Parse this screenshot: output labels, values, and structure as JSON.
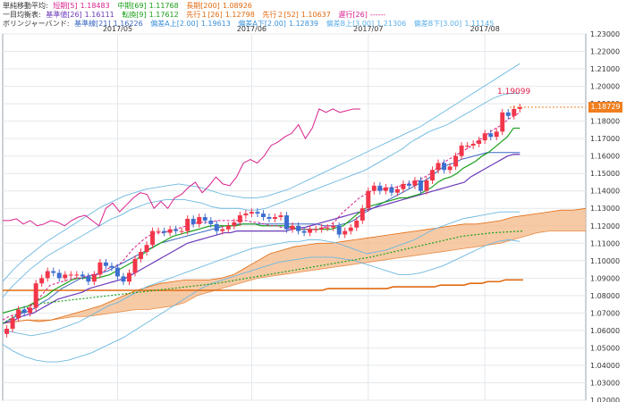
{
  "legends": {
    "sma": {
      "title": "単純移動平均:",
      "items": [
        {
          "label": "短期[5]",
          "value": "1.18483",
          "color": "#d8208c"
        },
        {
          "label": "中期[69]",
          "value": "1.11768",
          "color": "#1aa01a"
        },
        {
          "label": "長期[200]",
          "value": "1.08926",
          "color": "#e06a10"
        }
      ]
    },
    "ichimoku": {
      "title": "一目均衡表:",
      "items": [
        {
          "label": "基準値[26]",
          "value": "1.16111",
          "color": "#6c3ab8"
        },
        {
          "label": "転換[9]",
          "value": "1.17612",
          "color": "#1aa01a"
        },
        {
          "label": "先行１[26]",
          "value": "1.12798",
          "color": "#e06a10"
        },
        {
          "label": "先行２[52]",
          "value": "1.10637",
          "color": "#e06a10"
        },
        {
          "label": "遅行[26]",
          "value": "------",
          "color": "#d8208c"
        }
      ]
    },
    "bollinger": {
      "title": "ボリンジャーバンド:",
      "items": [
        {
          "label": "基準線[21]",
          "value": "1.16226",
          "color": "#3a66c0"
        },
        {
          "label": "偏差A上[2.00]",
          "value": "1.19613",
          "color": "#3a90d8"
        },
        {
          "label": "偏差A下[2.00]",
          "value": "1.12839",
          "color": "#3a90d8"
        },
        {
          "label": "偏差B上[3.00]",
          "value": "1.21306",
          "color": "#5ab0e8"
        },
        {
          "label": "偏差B下[3.00]",
          "value": "1.11145",
          "color": "#5ab0e8"
        }
      ]
    }
  },
  "price_tag": "1.18729",
  "peak_label": "1.19099",
  "colors": {
    "up": "#f2364a",
    "down": "#3d6fd0",
    "cloud": "#f4b888",
    "sma_short": "#d8208c",
    "sma_mid": "#1aa01a",
    "sma_long": "#e06a10",
    "kijun": "#6c3ab8",
    "chikou": "#d8208c",
    "bb_mid": "#3a66c0",
    "bb_band": "#6cb8e0",
    "price_tag": "#f07f20"
  },
  "chart_data": {
    "type": "candlestick",
    "xlabels": [
      "2017/05",
      "2017/06",
      "2017/07",
      "2017/08"
    ],
    "ylim": [
      1.02,
      1.23
    ],
    "yticks": [
      "1.23000",
      "1.22000",
      "1.21000",
      "1.20000",
      "1.19000",
      "1.18000",
      "1.17000",
      "1.16000",
      "1.15000",
      "1.14000",
      "1.13000",
      "1.12000",
      "1.11000",
      "1.10000",
      "1.09000",
      "1.08000",
      "1.07000",
      "1.06000",
      "1.05000",
      "1.04000",
      "1.03000",
      "1.02000"
    ],
    "grid": true,
    "month_index": [
      19,
      42,
      62,
      82
    ],
    "close": [
      1.061,
      1.067,
      1.072,
      1.07,
      1.073,
      1.087,
      1.09,
      1.094,
      1.093,
      1.09,
      1.092,
      1.092,
      1.092,
      1.091,
      1.088,
      1.092,
      1.099,
      1.097,
      1.096,
      1.091,
      1.088,
      1.093,
      1.101,
      1.105,
      1.109,
      1.117,
      1.117,
      1.116,
      1.118,
      1.117,
      1.117,
      1.124,
      1.121,
      1.125,
      1.123,
      1.121,
      1.117,
      1.118,
      1.12,
      1.122,
      1.126,
      1.127,
      1.128,
      1.127,
      1.125,
      1.124,
      1.125,
      1.126,
      1.118,
      1.12,
      1.117,
      1.116,
      1.118,
      1.118,
      1.119,
      1.119,
      1.12,
      1.115,
      1.117,
      1.119,
      1.123,
      1.13,
      1.14,
      1.143,
      1.14,
      1.142,
      1.139,
      1.141,
      1.144,
      1.143,
      1.146,
      1.14,
      1.146,
      1.152,
      1.156,
      1.152,
      1.154,
      1.16,
      1.166,
      1.166,
      1.167,
      1.169,
      1.173,
      1.171,
      1.174,
      1.185,
      1.183,
      1.187,
      1.188
    ],
    "sma_short": [
      1.066,
      1.068,
      1.069,
      1.07,
      1.072,
      1.075,
      1.078,
      1.082,
      1.086,
      1.087,
      1.088,
      1.089,
      1.09,
      1.09,
      1.091,
      1.092,
      1.092,
      1.094,
      1.096,
      1.097,
      1.099,
      1.103,
      1.107,
      1.11,
      1.113,
      1.115,
      1.116,
      1.116,
      1.117,
      1.118,
      1.119,
      1.12,
      1.121,
      1.122,
      1.122,
      1.122,
      1.123,
      1.123,
      1.123,
      1.123,
      1.123,
      1.123,
      1.122,
      1.122,
      1.121,
      1.12,
      1.12,
      1.119,
      1.119,
      1.118,
      1.118,
      1.118,
      1.118,
      1.118,
      1.119,
      1.12,
      1.123,
      1.127,
      1.13,
      1.133,
      1.136,
      1.138,
      1.14,
      1.141,
      1.141,
      1.142,
      1.142,
      1.143,
      1.144,
      1.145,
      1.146,
      1.148,
      1.15,
      1.153,
      1.156,
      1.158,
      1.16,
      1.162,
      1.164,
      1.166,
      1.169,
      1.171,
      1.174,
      1.176,
      1.178,
      1.181,
      1.183,
      1.185
    ],
    "sma_mid": [
      1.07,
      1.071,
      1.072,
      1.073,
      1.074,
      1.076,
      1.078,
      1.08,
      1.083,
      1.085,
      1.087,
      1.089,
      1.09,
      1.09,
      1.09,
      1.09,
      1.091,
      1.092,
      1.094,
      1.096,
      1.098,
      1.1,
      1.103,
      1.106,
      1.108,
      1.11,
      1.112,
      1.114,
      1.115,
      1.116,
      1.117,
      1.118,
      1.119,
      1.12,
      1.12,
      1.12,
      1.12,
      1.12,
      1.121,
      1.121,
      1.121,
      1.12,
      1.12,
      1.12,
      1.12,
      1.12,
      1.119,
      1.118,
      1.118,
      1.118,
      1.118,
      1.118,
      1.118,
      1.119,
      1.12,
      1.123,
      1.126,
      1.129,
      1.131,
      1.132,
      1.133,
      1.134,
      1.135,
      1.136,
      1.136,
      1.137,
      1.138,
      1.14,
      1.142,
      1.145,
      1.147,
      1.148,
      1.15,
      1.153,
      1.155,
      1.157,
      1.16,
      1.162,
      1.165,
      1.168,
      1.171,
      1.176,
      1.176
    ],
    "sma_long": [
      1.083,
      1.083,
      1.083,
      1.083,
      1.083,
      1.083,
      1.083,
      1.083,
      1.083,
      1.083,
      1.083,
      1.083,
      1.083,
      1.083,
      1.083,
      1.083,
      1.083,
      1.083,
      1.083,
      1.083,
      1.083,
      1.083,
      1.083,
      1.083,
      1.083,
      1.083,
      1.083,
      1.083,
      1.083,
      1.083,
      1.083,
      1.083,
      1.083,
      1.083,
      1.083,
      1.083,
      1.083,
      1.083,
      1.083,
      1.083,
      1.083,
      1.083,
      1.083,
      1.083,
      1.083,
      1.083,
      1.083,
      1.083,
      1.083,
      1.083,
      1.083,
      1.083,
      1.083,
      1.083,
      1.083,
      1.084,
      1.084,
      1.084,
      1.084,
      1.084,
      1.084,
      1.084,
      1.084,
      1.084,
      1.084,
      1.084,
      1.085,
      1.085,
      1.085,
      1.085,
      1.085,
      1.085,
      1.085,
      1.085,
      1.086,
      1.086,
      1.086,
      1.086,
      1.086,
      1.087,
      1.087,
      1.087,
      1.088,
      1.088,
      1.088,
      1.089,
      1.089,
      1.089,
      1.089
    ],
    "kijun": [
      1.064,
      1.065,
      1.066,
      1.068,
      1.069,
      1.07,
      1.072,
      1.074,
      1.076,
      1.078,
      1.079,
      1.08,
      1.081,
      1.082,
      1.084,
      1.085,
      1.086,
      1.087,
      1.088,
      1.089,
      1.09,
      1.092,
      1.094,
      1.096,
      1.098,
      1.1,
      1.102,
      1.104,
      1.106,
      1.108,
      1.11,
      1.111,
      1.112,
      1.113,
      1.114,
      1.115,
      1.116,
      1.116,
      1.117,
      1.117,
      1.117,
      1.117,
      1.117,
      1.117,
      1.117,
      1.117,
      1.117,
      1.118,
      1.119,
      1.119,
      1.12,
      1.121,
      1.122,
      1.123,
      1.124,
      1.125,
      1.126,
      1.127,
      1.128,
      1.129,
      1.13,
      1.131,
      1.132,
      1.133,
      1.134,
      1.135,
      1.136,
      1.137,
      1.138,
      1.139,
      1.14,
      1.141,
      1.142,
      1.143,
      1.144,
      1.145,
      1.148,
      1.15,
      1.152,
      1.154,
      1.156,
      1.158,
      1.16,
      1.161,
      1.161
    ],
    "chikou": [
      1.123,
      1.123,
      1.124,
      1.121,
      1.123,
      1.12,
      1.121,
      1.123,
      1.122,
      1.12,
      1.123,
      1.125,
      1.126,
      1.123,
      1.12,
      1.13,
      1.133,
      1.128,
      1.132,
      1.136,
      1.139,
      1.138,
      1.13,
      1.134,
      1.13,
      1.136,
      1.138,
      1.142,
      1.145,
      1.139,
      1.143,
      1.148,
      1.144,
      1.143,
      1.148,
      1.156,
      1.158,
      1.156,
      1.16,
      1.166,
      1.168,
      1.171,
      1.173,
      1.178,
      1.17,
      1.176,
      1.187,
      1.185,
      1.187,
      1.185,
      1.186,
      1.187,
      1.187
    ],
    "bb_mid": [
      1.064,
      1.066,
      1.068,
      1.07,
      1.071,
      1.073,
      1.076,
      1.078,
      1.081,
      1.084,
      1.086,
      1.088,
      1.09,
      1.091,
      1.092,
      1.093,
      1.094,
      1.096,
      1.098,
      1.1,
      1.102,
      1.104,
      1.106,
      1.108,
      1.11,
      1.111,
      1.112,
      1.113,
      1.114,
      1.115,
      1.116,
      1.117,
      1.118,
      1.119,
      1.12,
      1.12,
      1.121,
      1.121,
      1.121,
      1.121,
      1.121,
      1.121,
      1.121,
      1.121,
      1.121,
      1.121,
      1.121,
      1.121,
      1.121,
      1.12,
      1.12,
      1.12,
      1.121,
      1.122,
      1.124,
      1.127,
      1.129,
      1.131,
      1.133,
      1.135,
      1.137,
      1.139,
      1.141,
      1.143,
      1.145,
      1.147,
      1.15,
      1.153,
      1.155,
      1.156,
      1.158,
      1.159,
      1.16,
      1.161,
      1.162,
      1.162,
      1.162,
      1.162,
      1.162,
      1.162
    ],
    "bb_a_up": [
      1.079,
      1.085,
      1.09,
      1.095,
      1.099,
      1.103,
      1.106,
      1.109,
      1.112,
      1.115,
      1.118,
      1.121,
      1.124,
      1.126,
      1.129,
      1.131,
      1.133,
      1.134,
      1.135,
      1.135,
      1.135,
      1.134,
      1.133,
      1.131,
      1.13,
      1.13,
      1.13,
      1.129,
      1.129,
      1.13,
      1.132,
      1.134,
      1.136,
      1.138,
      1.14,
      1.142,
      1.144,
      1.146,
      1.148,
      1.15,
      1.152,
      1.155,
      1.158,
      1.161,
      1.164,
      1.168,
      1.171,
      1.174,
      1.176,
      1.178,
      1.181,
      1.184,
      1.187,
      1.19,
      1.193,
      1.195,
      1.196,
      1.196
    ],
    "bb_a_dn": [
      1.06,
      1.059,
      1.058,
      1.057,
      1.058,
      1.059,
      1.061,
      1.063,
      1.065,
      1.068,
      1.071,
      1.074,
      1.076,
      1.079,
      1.082,
      1.085,
      1.087,
      1.089,
      1.091,
      1.093,
      1.095,
      1.097,
      1.099,
      1.101,
      1.103,
      1.105,
      1.107,
      1.108,
      1.109,
      1.11,
      1.111,
      1.111,
      1.112,
      1.112,
      1.111,
      1.11,
      1.108,
      1.106,
      1.104,
      1.105,
      1.106,
      1.108,
      1.11,
      1.112,
      1.115,
      1.118,
      1.12,
      1.122,
      1.124,
      1.125,
      1.126,
      1.127,
      1.128,
      1.128,
      1.128
    ],
    "bb_b_up": [
      1.088,
      1.095,
      1.101,
      1.106,
      1.111,
      1.115,
      1.119,
      1.123,
      1.127,
      1.131,
      1.134,
      1.137,
      1.139,
      1.141,
      1.142,
      1.143,
      1.144,
      1.143,
      1.142,
      1.14,
      1.138,
      1.137,
      1.136,
      1.136,
      1.137,
      1.139,
      1.141,
      1.144,
      1.147,
      1.15,
      1.153,
      1.156,
      1.159,
      1.162,
      1.165,
      1.168,
      1.171,
      1.174,
      1.177,
      1.181,
      1.185,
      1.189,
      1.193,
      1.197,
      1.201,
      1.205,
      1.209,
      1.213
    ],
    "bb_b_dn": [
      1.052,
      1.048,
      1.045,
      1.043,
      1.042,
      1.042,
      1.043,
      1.045,
      1.047,
      1.05,
      1.053,
      1.056,
      1.06,
      1.064,
      1.068,
      1.072,
      1.076,
      1.08,
      1.084,
      1.087,
      1.089,
      1.091,
      1.093,
      1.095,
      1.097,
      1.099,
      1.1,
      1.101,
      1.102,
      1.102,
      1.102,
      1.101,
      1.1,
      1.098,
      1.096,
      1.094,
      1.092,
      1.092,
      1.093,
      1.095,
      1.097,
      1.1,
      1.103,
      1.106,
      1.109,
      1.111,
      1.112,
      1.111
    ],
    "senkou_a": [
      1.064,
      1.065,
      1.066,
      1.065,
      1.066,
      1.068,
      1.07,
      1.072,
      1.074,
      1.077,
      1.08,
      1.083,
      1.085,
      1.087,
      1.088,
      1.089,
      1.089,
      1.089,
      1.09,
      1.092,
      1.096,
      1.1,
      1.104,
      1.106,
      1.108,
      1.109,
      1.11,
      1.11,
      1.111,
      1.112,
      1.113,
      1.114,
      1.115,
      1.116,
      1.117,
      1.118,
      1.119,
      1.12,
      1.121,
      1.121,
      1.122,
      1.123,
      1.125,
      1.126,
      1.127,
      1.128,
      1.129,
      1.129,
      1.13
    ],
    "senkou_b": [
      1.064,
      1.065,
      1.066,
      1.066,
      1.066,
      1.067,
      1.068,
      1.068,
      1.069,
      1.07,
      1.071,
      1.072,
      1.072,
      1.073,
      1.074,
      1.076,
      1.08,
      1.082,
      1.084,
      1.086,
      1.088,
      1.09,
      1.091,
      1.092,
      1.093,
      1.094,
      1.095,
      1.096,
      1.097,
      1.098,
      1.099,
      1.1,
      1.101,
      1.102,
      1.103,
      1.104,
      1.105,
      1.106,
      1.107,
      1.108,
      1.109,
      1.11,
      1.112,
      1.114,
      1.116,
      1.117,
      1.117,
      1.117,
      1.117
    ],
    "green_dotted": [
      1.064,
      1.075,
      1.077,
      1.079,
      1.081,
      1.083,
      1.085,
      1.087,
      1.09,
      1.093,
      1.096,
      1.099,
      1.102,
      1.106,
      1.11,
      1.114,
      1.116,
      1.117
    ]
  }
}
